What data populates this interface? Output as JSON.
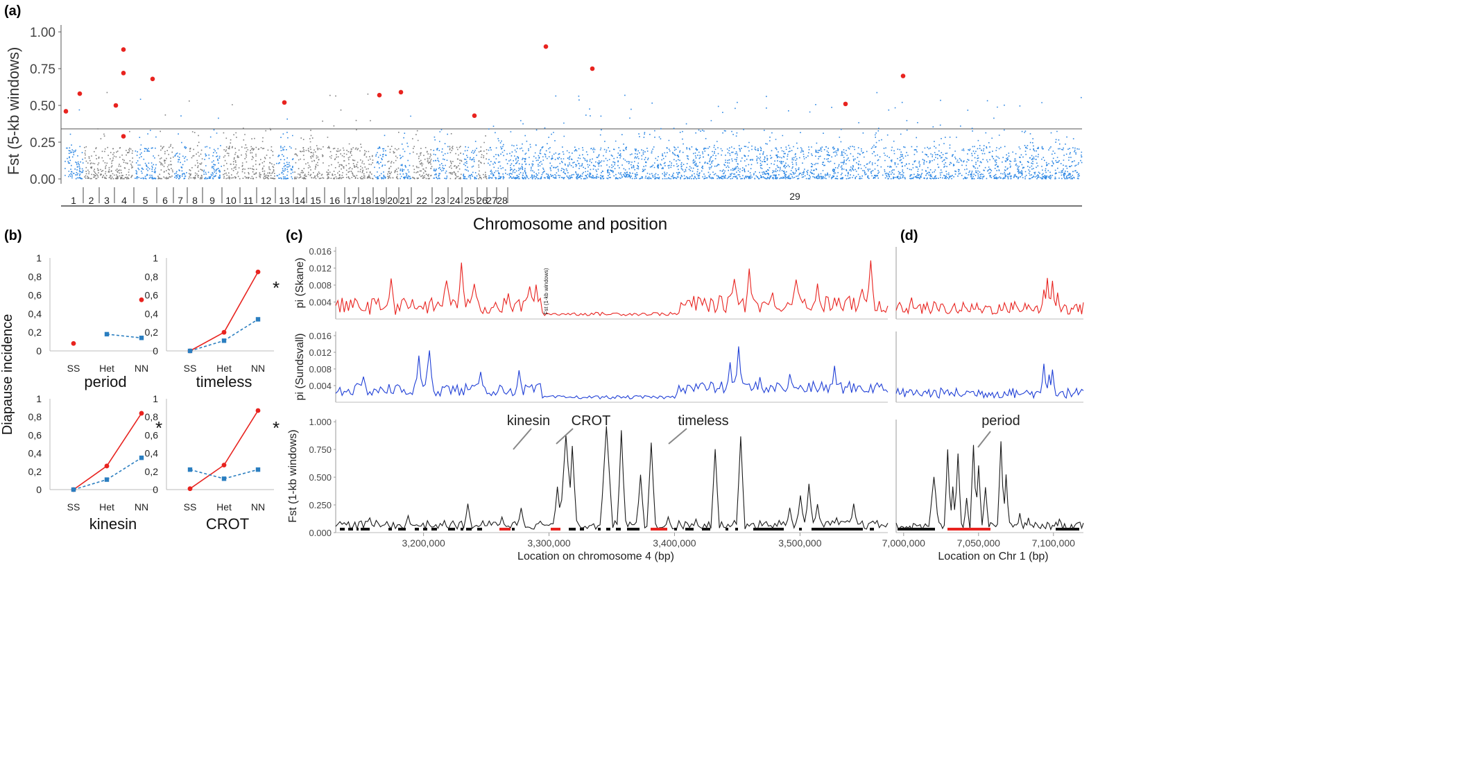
{
  "panels": {
    "a": "(a)",
    "b": "(b)",
    "c": "(c)",
    "d": "(d)"
  },
  "colors": {
    "blue": "#2b86e3",
    "gray": "#7f7f7f",
    "red": "#e8231f",
    "het_blue": "#2a7ec0",
    "pi_sundsvall": "#1f3fd6",
    "fst_line": "#1a1a1a"
  },
  "chart_data": [
    {
      "type": "scatter",
      "panel": "a",
      "ylabel": "Fst (5-kb windows)",
      "xlabel": "Chromosome and position",
      "ylim": [
        0,
        1.05
      ],
      "yticks": [
        "0.00",
        "0.25",
        "0.50",
        "0.75",
        "1.00"
      ],
      "threshold": 0.34,
      "chromosomes": [
        "1",
        "2",
        "3",
        "4",
        "5",
        "6",
        "7",
        "8",
        "9",
        "10",
        "11",
        "12",
        "13",
        "14",
        "15",
        "16",
        "17",
        "18",
        "19",
        "20",
        "21",
        "22",
        "23",
        "24",
        "25",
        "26",
        "27",
        "28",
        "29"
      ],
      "chromosome_colors": [
        "blue",
        "gray",
        "gray",
        "gray",
        "blue",
        "gray",
        "blue",
        "gray",
        "blue",
        "gray",
        "gray",
        "gray",
        "blue",
        "gray",
        "gray",
        "gray",
        "gray",
        "gray",
        "blue",
        "gray",
        "blue",
        "gray",
        "blue",
        "gray",
        "blue",
        "gray",
        "blue",
        "blue",
        "blue"
      ],
      "highlight_points": [
        {
          "chrom": "1",
          "fst": 0.46
        },
        {
          "chrom": "1",
          "fst": 0.58
        },
        {
          "chrom": "4",
          "fst": 0.88
        },
        {
          "chrom": "4",
          "fst": 0.72
        },
        {
          "chrom": "4",
          "fst": 0.5
        },
        {
          "chrom": "4",
          "fst": 0.29
        },
        {
          "chrom": "5",
          "fst": 0.68
        },
        {
          "chrom": "13",
          "fst": 0.52
        },
        {
          "chrom": "19",
          "fst": 0.57
        },
        {
          "chrom": "21",
          "fst": 0.59
        },
        {
          "chrom": "26",
          "fst": 0.43
        },
        {
          "chrom": "29",
          "fst": 0.9
        },
        {
          "chrom": "29",
          "fst": 0.75
        },
        {
          "chrom": "29",
          "fst": 0.51
        },
        {
          "chrom": "29",
          "fst": 0.7
        }
      ]
    },
    {
      "type": "line",
      "panel": "b",
      "ylabel": "Diapause incidence",
      "categories": [
        "SS",
        "Het",
        "NN"
      ],
      "yticks": [
        "0",
        "0,2",
        "0,4",
        "0,6",
        "0,8",
        "1"
      ],
      "ylim": [
        0,
        1
      ],
      "subplots": [
        {
          "gene": "period",
          "star": "",
          "series": [
            {
              "values": [
                0.08,
                null,
                0.55
              ]
            },
            {
              "values": [
                null,
                0.18,
                0.14
              ]
            }
          ]
        },
        {
          "gene": "timeless",
          "star": "*",
          "series": [
            {
              "values": [
                0.0,
                0.2,
                0.85
              ]
            },
            {
              "values": [
                0.0,
                0.11,
                0.34
              ]
            }
          ]
        },
        {
          "gene": "kinesin",
          "star": "*",
          "series": [
            {
              "values": [
                0.0,
                0.26,
                0.84
              ]
            },
            {
              "values": [
                0.0,
                0.11,
                0.35
              ]
            }
          ]
        },
        {
          "gene": "CROT",
          "star": "*",
          "series": [
            {
              "values": [
                0.01,
                0.27,
                0.87
              ]
            },
            {
              "values": [
                0.22,
                0.12,
                0.22
              ]
            }
          ]
        }
      ]
    },
    {
      "type": "line",
      "panel": "c",
      "xlabel": "Location on chromosome 4 (bp)",
      "xlim": [
        3130000,
        3570000
      ],
      "xticks": [
        "3,200,000",
        "3,300,000",
        "3,400,000",
        "3,500,000"
      ],
      "tracks": [
        {
          "ylabel": "pi (Skane)",
          "yticks": [
            "0.004",
            "0.008",
            "0.012",
            "0.016"
          ],
          "ylim": [
            0,
            0.017
          ]
        },
        {
          "ylabel": "pi (Sundsvall)",
          "yticks": [
            "0.004",
            "0.008",
            "0.012",
            "0.016"
          ],
          "ylim": [
            0,
            0.017
          ]
        },
        {
          "ylabel": "Fst (1-kb windows)",
          "yticks": [
            "0.000",
            "0.250",
            "0.500",
            "0.750",
            "1.000"
          ],
          "ylim": [
            0,
            1.02
          ]
        }
      ],
      "small_label": "Fst (1-kb windows)",
      "annotations": [
        {
          "text": "kinesin",
          "x": 3268000,
          "peak": 0.86
        },
        {
          "text": "CROT",
          "x": 3303000,
          "peak": 0.93
        },
        {
          "text": "timeless",
          "x": 3392000,
          "peak": 0.73
        }
      ]
    },
    {
      "type": "line",
      "panel": "d",
      "xlabel": "Location on Chr 1 (bp)",
      "xlim": [
        6995000,
        7120000
      ],
      "xticks": [
        "7,000,000",
        "7,050,000",
        "7,100,000"
      ],
      "annotations": [
        {
          "text": "period",
          "x": 7048000,
          "peak": 0.79
        }
      ]
    }
  ]
}
